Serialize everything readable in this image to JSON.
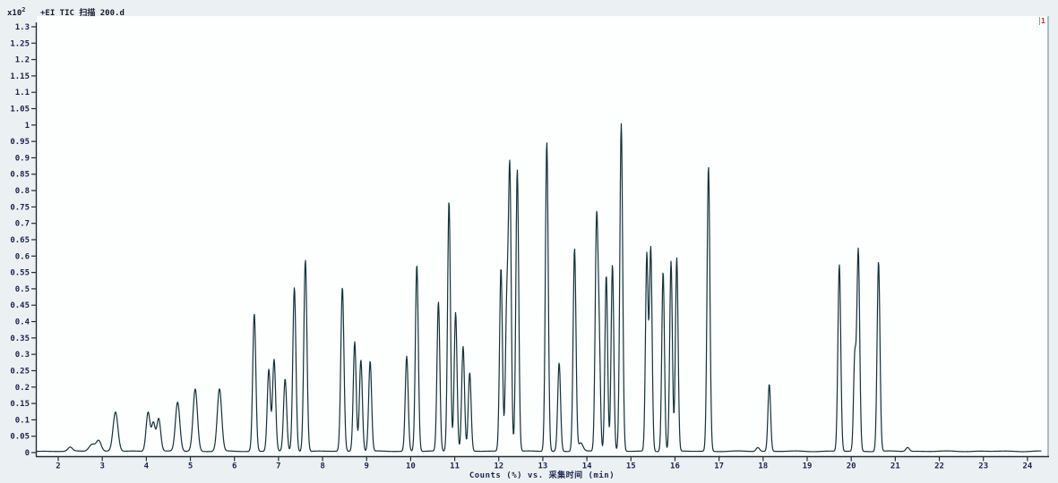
{
  "header": {
    "scale_label_base": "x10",
    "scale_label_exp": "2"
  },
  "marker": {
    "label": "1"
  },
  "colors": {
    "trace": "#12313a",
    "axis": "#222d38",
    "tick_text": "#1a2550",
    "title_text": "#131c2e",
    "plot_bg": "#fdfefe",
    "page_bg": "#ebf1f2",
    "right_border": "#a9bdc4",
    "marker_red": "#c43226"
  },
  "chart_data": {
    "type": "line",
    "title": "+EI TIC 扫描 200.d",
    "scale_label": "x10^2",
    "xlabel": "Counts (%) vs. 采集时间 (min)",
    "ylabel": "",
    "xlim": [
      1.512,
      24.47
    ],
    "ylim": [
      0,
      1.3135
    ],
    "grid": false,
    "legend": "none",
    "x_ticks": [
      2,
      3,
      4,
      5,
      6,
      7,
      8,
      9,
      10,
      11,
      12,
      13,
      14,
      15,
      16,
      17,
      18,
      19,
      20,
      21,
      22,
      23,
      24
    ],
    "y_ticks": [
      0,
      0.05,
      0.1,
      0.15,
      0.2,
      0.25,
      0.3,
      0.35,
      0.4,
      0.45,
      0.5,
      0.55,
      0.6,
      0.65,
      0.7,
      0.75,
      0.8,
      0.85,
      0.9,
      0.95,
      1,
      1.05,
      1.1,
      1.15,
      1.2,
      1.25,
      1.3
    ],
    "baseline": 0.004,
    "peaks": [
      {
        "t": 2.27,
        "h": 0.012,
        "w": 0.05
      },
      {
        "t": 2.77,
        "h": 0.022,
        "w": 0.07
      },
      {
        "t": 2.92,
        "h": 0.032,
        "w": 0.055
      },
      {
        "t": 3.3,
        "h": 0.12,
        "w": 0.055
      },
      {
        "t": 4.04,
        "h": 0.12,
        "w": 0.045
      },
      {
        "t": 4.16,
        "h": 0.085,
        "w": 0.04
      },
      {
        "t": 4.28,
        "h": 0.1,
        "w": 0.045
      },
      {
        "t": 4.71,
        "h": 0.15,
        "w": 0.05
      },
      {
        "t": 5.11,
        "h": 0.19,
        "w": 0.05
      },
      {
        "t": 5.66,
        "h": 0.19,
        "w": 0.05
      },
      {
        "t": 6.45,
        "h": 0.42,
        "w": 0.035
      },
      {
        "t": 6.78,
        "h": 0.25,
        "w": 0.035
      },
      {
        "t": 6.9,
        "h": 0.28,
        "w": 0.035
      },
      {
        "t": 7.15,
        "h": 0.22,
        "w": 0.035
      },
      {
        "t": 7.36,
        "h": 0.5,
        "w": 0.035
      },
      {
        "t": 7.61,
        "h": 0.585,
        "w": 0.035
      },
      {
        "t": 8.45,
        "h": 0.5,
        "w": 0.035
      },
      {
        "t": 8.73,
        "h": 0.335,
        "w": 0.033
      },
      {
        "t": 8.87,
        "h": 0.28,
        "w": 0.033
      },
      {
        "t": 9.08,
        "h": 0.275,
        "w": 0.033
      },
      {
        "t": 9.91,
        "h": 0.29,
        "w": 0.033
      },
      {
        "t": 10.14,
        "h": 0.57,
        "w": 0.033
      },
      {
        "t": 10.63,
        "h": 0.455,
        "w": 0.032
      },
      {
        "t": 10.87,
        "h": 0.765,
        "w": 0.032
      },
      {
        "t": 11.02,
        "h": 0.425,
        "w": 0.032
      },
      {
        "t": 11.19,
        "h": 0.32,
        "w": 0.032
      },
      {
        "t": 11.34,
        "h": 0.24,
        "w": 0.032
      },
      {
        "t": 12.05,
        "h": 0.56,
        "w": 0.032
      },
      {
        "t": 12.18,
        "h": 0.42,
        "w": 0.03
      },
      {
        "t": 12.25,
        "h": 0.86,
        "w": 0.032
      },
      {
        "t": 12.42,
        "h": 0.86,
        "w": 0.032
      },
      {
        "t": 13.09,
        "h": 0.945,
        "w": 0.032
      },
      {
        "t": 13.37,
        "h": 0.27,
        "w": 0.032
      },
      {
        "t": 13.72,
        "h": 0.62,
        "w": 0.032
      },
      {
        "t": 13.86,
        "h": 0.025,
        "w": 0.05
      },
      {
        "t": 14.22,
        "h": 0.7,
        "w": 0.032
      },
      {
        "t": 14.28,
        "h": 0.3,
        "w": 0.028
      },
      {
        "t": 14.44,
        "h": 0.54,
        "w": 0.03
      },
      {
        "t": 14.58,
        "h": 0.57,
        "w": 0.03
      },
      {
        "t": 14.78,
        "h": 1.0,
        "w": 0.032
      },
      {
        "t": 15.36,
        "h": 0.6,
        "w": 0.03
      },
      {
        "t": 15.45,
        "h": 0.62,
        "w": 0.03
      },
      {
        "t": 15.73,
        "h": 0.55,
        "w": 0.03
      },
      {
        "t": 15.91,
        "h": 0.58,
        "w": 0.03
      },
      {
        "t": 16.04,
        "h": 0.59,
        "w": 0.03
      },
      {
        "t": 16.76,
        "h": 0.87,
        "w": 0.032
      },
      {
        "t": 17.88,
        "h": 0.012,
        "w": 0.04
      },
      {
        "t": 18.14,
        "h": 0.205,
        "w": 0.03
      },
      {
        "t": 19.73,
        "h": 0.57,
        "w": 0.032
      },
      {
        "t": 20.08,
        "h": 0.28,
        "w": 0.028
      },
      {
        "t": 20.16,
        "h": 0.615,
        "w": 0.032
      },
      {
        "t": 20.62,
        "h": 0.58,
        "w": 0.032
      },
      {
        "t": 21.28,
        "h": 0.012,
        "w": 0.04
      }
    ]
  }
}
